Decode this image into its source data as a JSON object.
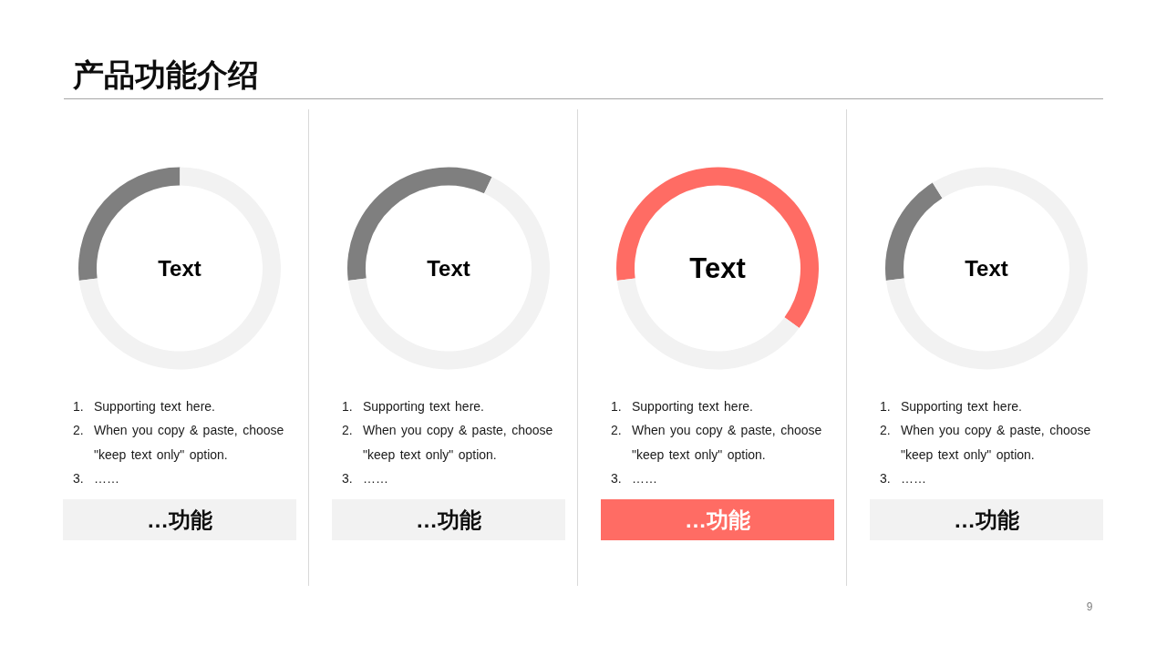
{
  "chart_data": [
    {
      "type": "other",
      "title": "产品功能介绍",
      "annotations": [
        "9"
      ]
    },
    {
      "type": "donut",
      "title": "Text",
      "categories": [
        null,
        null
      ],
      "values": [
        27,
        73
      ],
      "colors": [
        "#7f7f7f",
        "#f2f2f2"
      ],
      "annotations": [
        "1. Supporting text here.",
        "2. When you copy & paste, choose \"keep text only\" option.",
        "3. ……",
        "…功能"
      ]
    },
    {
      "type": "donut",
      "title": "Text",
      "categories": [
        null,
        null
      ],
      "values": [
        34,
        66
      ],
      "colors": [
        "#7f7f7f",
        "#f2f2f2"
      ],
      "annotations": [
        "1. Supporting text here.",
        "2. When you copy & paste, choose \"keep text only\" option.",
        "3. ……",
        "…功能"
      ]
    },
    {
      "type": "donut",
      "title": "Text",
      "categories": [
        null,
        null
      ],
      "values": [
        62,
        38
      ],
      "colors": [
        "#ff6c64",
        "#f2f2f2"
      ],
      "annotations": [
        "1. Supporting text here.",
        "2. When you copy & paste, choose \"keep text only\" option.",
        "3. ……",
        "…功能"
      ]
    },
    {
      "type": "donut",
      "title": "Text",
      "categories": [
        null,
        null
      ],
      "values": [
        18,
        82
      ],
      "colors": [
        "#7f7f7f",
        "#f2f2f2"
      ],
      "annotations": [
        "1. Supporting text here.",
        "2. When you copy & paste, choose \"keep text only\" option.",
        "3. ……",
        "…功能"
      ]
    }
  ]
}
